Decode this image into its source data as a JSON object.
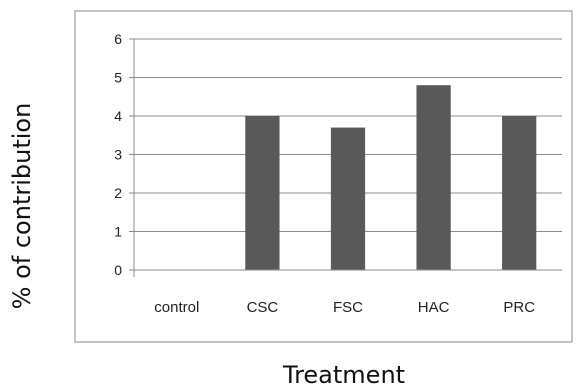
{
  "chart_data": {
    "type": "bar",
    "categories": [
      "control",
      "CSC",
      "FSC",
      "HAC",
      "PRC"
    ],
    "values": [
      0,
      4.0,
      3.7,
      4.8,
      4.0
    ],
    "title": "",
    "xlabel": "Treatment",
    "ylabel": "% of contribution",
    "ylim": [
      0,
      6
    ],
    "yticks": [
      0,
      1,
      2,
      3,
      4,
      5,
      6
    ],
    "grid": true,
    "legend": "none",
    "bar_color": "#595959",
    "grid_color": "#8c8c8c",
    "border_color": "#888888"
  }
}
